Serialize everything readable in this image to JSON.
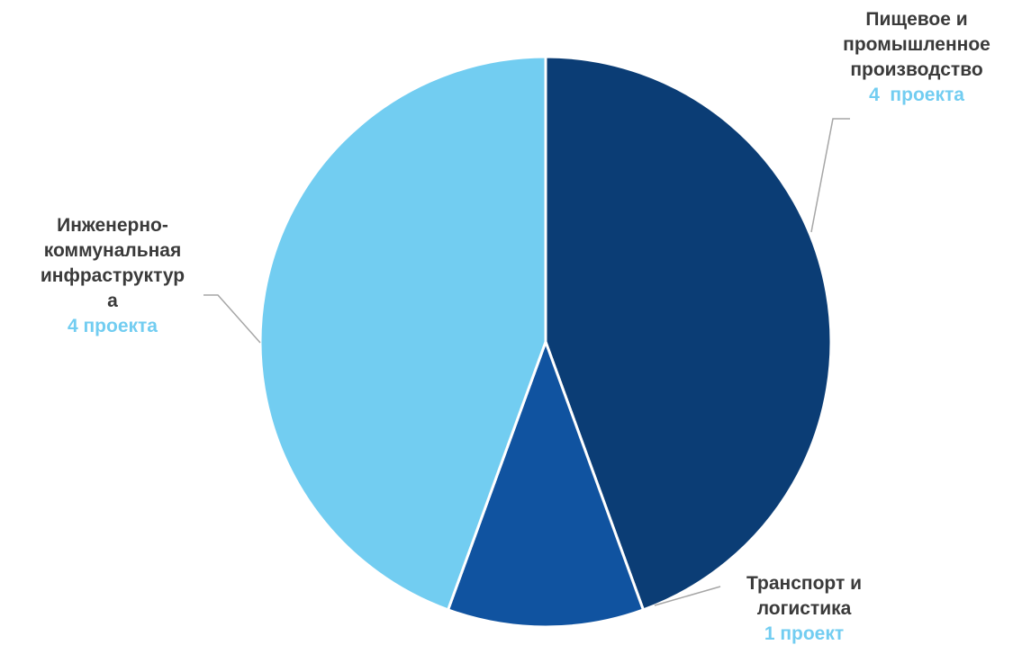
{
  "chart_data": {
    "type": "pie",
    "categories": [
      "Пищевое и промышленное производство",
      "Транспорт и логистика",
      "Инженерно-коммунальная инфраструктура"
    ],
    "values": [
      4,
      1,
      4
    ],
    "start_angle_deg": 0,
    "direction": "clockwise",
    "labels": [
      {
        "name_lines": [
          "Пищевое и",
          "промышленное",
          "производство"
        ],
        "count": "4  проекта",
        "color": "#0b3d75"
      },
      {
        "name_lines": [
          "Транспорт и",
          "логистика"
        ],
        "count": "1 проект",
        "color": "#1053a0"
      },
      {
        "name_lines": [
          "Инженерно-",
          "коммунальная",
          "инфраструктур",
          "а"
        ],
        "count": "4 проекта",
        "color": "#72cdf1"
      }
    ],
    "count_label_color": "#72cdf1",
    "leader_line_color": "#a6a6a6",
    "legend": "none"
  }
}
